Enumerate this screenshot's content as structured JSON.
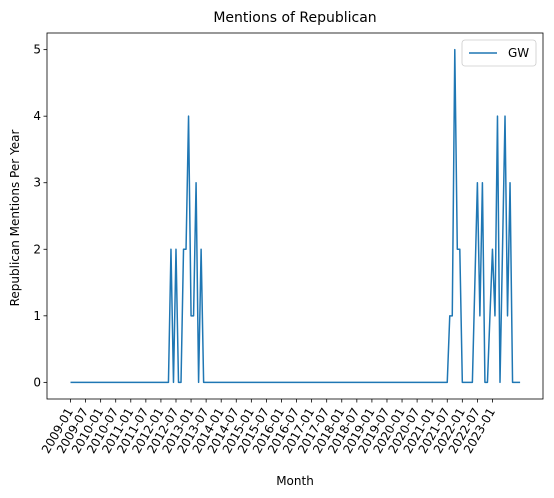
{
  "chart_data": {
    "type": "line",
    "title": "Mentions of Republican",
    "xlabel": "Month",
    "ylabel": "Republican Mentions Per Year",
    "x_tick_labels": [
      "2009-01",
      "2009-07",
      "2010-01",
      "2010-07",
      "2011-01",
      "2011-07",
      "2012-01",
      "2012-07",
      "2013-01",
      "2013-07",
      "2014-01",
      "2014-07",
      "2015-01",
      "2015-07",
      "2016-01",
      "2016-07",
      "2017-01",
      "2017-07",
      "2018-01",
      "2018-07",
      "2019-01",
      "2019-07",
      "2020-01",
      "2020-07",
      "2021-01",
      "2021-07",
      "2022-01",
      "2022-07",
      "2023-01"
    ],
    "y_ticks": [
      0,
      1,
      2,
      3,
      4,
      5
    ],
    "ylim": [
      -0.25,
      5.25
    ],
    "grid": false,
    "legend_position": "top-right",
    "series": [
      {
        "name": "GW",
        "color": "#1f77b4",
        "x": [
          "2009-01",
          "2010-01",
          "2011-01",
          "2012-01",
          "2012-04",
          "2012-05",
          "2012-06",
          "2012-07",
          "2012-08",
          "2012-09",
          "2012-10",
          "2012-11",
          "2012-12",
          "2013-01",
          "2013-02",
          "2013-03",
          "2013-04",
          "2013-05",
          "2013-06",
          "2013-07",
          "2013-08",
          "2013-09",
          "2014-01",
          "2016-01",
          "2018-01",
          "2020-01",
          "2021-01",
          "2021-07",
          "2021-08",
          "2021-09",
          "2021-10",
          "2021-11",
          "2021-12",
          "2022-01",
          "2022-03",
          "2022-05",
          "2022-07",
          "2022-08",
          "2022-09",
          "2022-10",
          "2022-11",
          "2023-01",
          "2023-02",
          "2023-03",
          "2023-04",
          "2023-05",
          "2023-06",
          "2023-07",
          "2023-08",
          "2023-09",
          "2023-10",
          "2023-11",
          "2023-12"
        ],
        "y": [
          0,
          0,
          0,
          0,
          0,
          2,
          0,
          2,
          0,
          0,
          2,
          2,
          4,
          1,
          1,
          3,
          0,
          2,
          0,
          0,
          0,
          0,
          0,
          0,
          0,
          0,
          0,
          0,
          1,
          1,
          5,
          2,
          2,
          0,
          0,
          0,
          3,
          1,
          3,
          0,
          0,
          2,
          1,
          4,
          0,
          2,
          4,
          1,
          3,
          0,
          0,
          0,
          0
        ]
      }
    ]
  }
}
